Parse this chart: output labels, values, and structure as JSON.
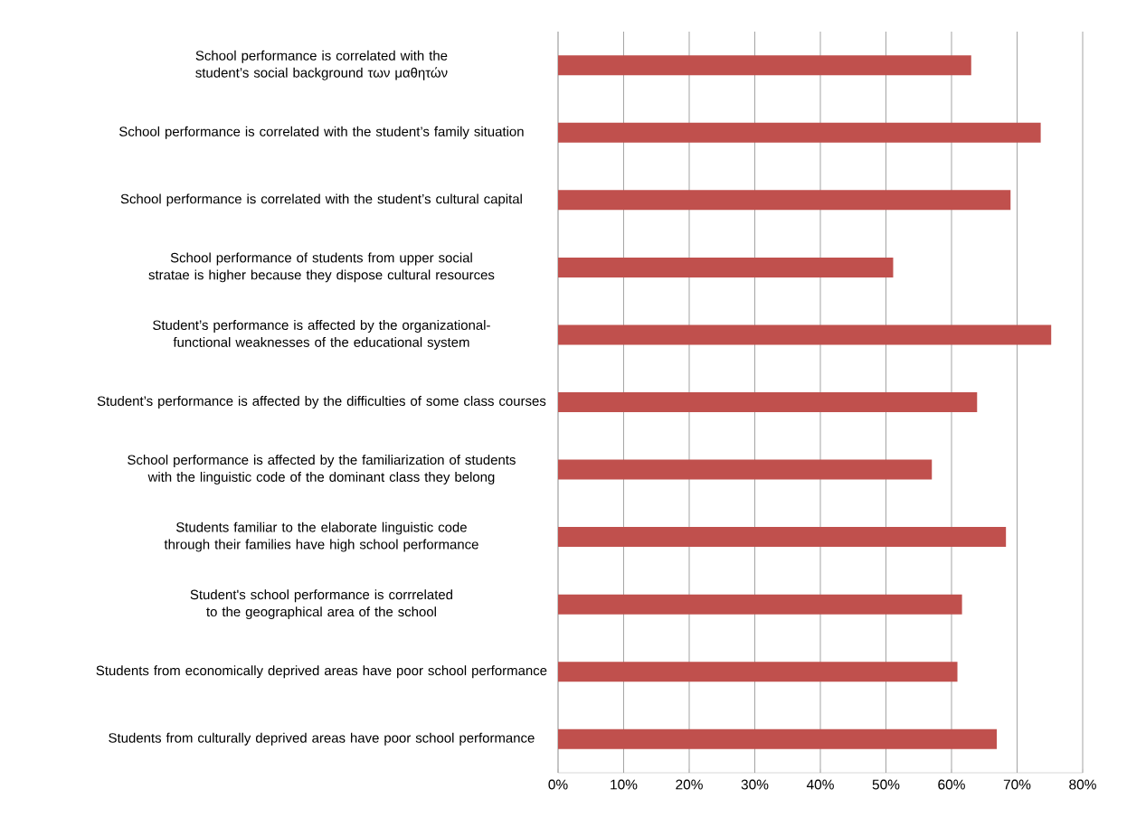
{
  "chart_data": {
    "type": "bar",
    "orientation": "horizontal",
    "categories": [
      "School performance is correlated with the student’s social background των μαθητών",
      "School performance is correlated with the student’s family situation",
      "School performance is correlated with the student’s cultural capital",
      "School performance of students from upper social stratae is higher because they dispose cultural resources",
      "Student’s performance is affected by the organizational-functional weaknesses of the educational system",
      "Student’s performance is affected by the difficulties of some class courses",
      "School performance is affected by the familiarization of students with the linguistic code of the dominant class they belong",
      "Students familiar to the elaborate linguistic code through their families have high school performance",
      "Student's  school performance  is corrrelated to the geographical area of the school",
      "Students from economically deprived areas have poor school performance",
      "Students from culturally deprived areas have poor school performance"
    ],
    "values": [
      63.0,
      73.6,
      69.0,
      51.1,
      75.2,
      63.9,
      57.0,
      68.3,
      61.6,
      60.9,
      66.9
    ],
    "color": "#c0504d",
    "xlim": [
      0,
      80
    ],
    "xticks": [
      {
        "value": 0,
        "label": "0%"
      },
      {
        "value": 10,
        "label": "10%"
      },
      {
        "value": 20,
        "label": "20%"
      },
      {
        "value": 30,
        "label": "30%"
      },
      {
        "value": 40,
        "label": "40%"
      },
      {
        "value": 50,
        "label": "50%"
      },
      {
        "value": 60,
        "label": "60%"
      },
      {
        "value": 70,
        "label": "70%"
      },
      {
        "value": 80,
        "label": "80%"
      }
    ],
    "grid": "x"
  }
}
